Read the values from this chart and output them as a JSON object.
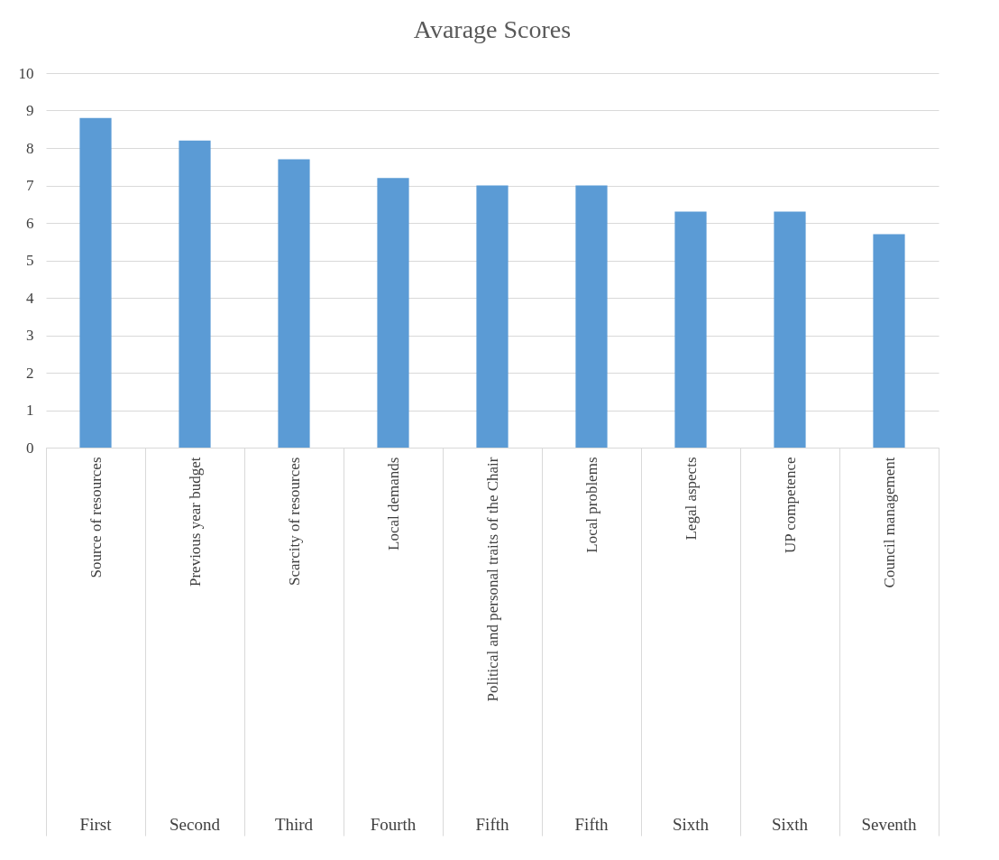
{
  "chart_data": {
    "type": "bar",
    "title": "Avarage  Scores",
    "categories": [
      "Source of resources",
      "Previous year budget",
      "Scarcity of resources",
      "Local demands",
      "Political and personal traits of the Chair",
      "Local problems",
      "Legal aspects",
      "UP competence",
      "Council management"
    ],
    "values": [
      8.8,
      8.2,
      7.7,
      7.2,
      7.0,
      7.0,
      6.3,
      6.3,
      5.7
    ],
    "color": "#5b9bd5",
    "ylim": [
      0,
      10
    ],
    "yticks": [
      0,
      1,
      2,
      3,
      4,
      5,
      6,
      7,
      8,
      9,
      10
    ],
    "grid": "y",
    "annotations": [
      "First",
      "Second",
      "Third",
      "Fourth",
      "Fifth",
      "Fifth",
      "Sixth",
      "Sixth",
      "Seventh"
    ]
  }
}
